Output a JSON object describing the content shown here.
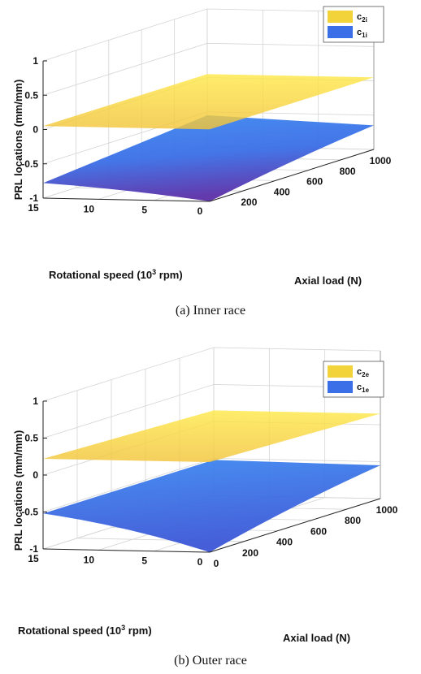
{
  "chart_data": [
    {
      "type": "surface",
      "caption": "(a) Inner race",
      "zlabel": "PRL locations (mm/mm)",
      "ylabel_main": "Rotational speed (10",
      "ylabel_sup": "3",
      "ylabel_end": " rpm)",
      "xlabel": "Axial load (N)",
      "x_ticks": [
        "200",
        "400",
        "600",
        "800",
        "1000"
      ],
      "y_ticks": [
        "0",
        "5",
        "10",
        "15"
      ],
      "z_ticks": [
        "-1",
        "-0.5",
        "0",
        "0.5",
        "1"
      ],
      "xlim": [
        0,
        1000
      ],
      "ylim": [
        0,
        15
      ],
      "zlim": [
        -1,
        1
      ],
      "legend": [
        {
          "name": "c",
          "sub": "2i",
          "color": "#F2D33A"
        },
        {
          "name": "c",
          "sub": "1i",
          "color": "#3B6FE8"
        }
      ],
      "series": [
        {
          "name": "c2i",
          "color_top": "#FFE63C",
          "color_bottom": "#F0C43A",
          "corners": {
            "load0_speed0": 0.05,
            "load0_speed15": 0.05,
            "load1000_speed0": 0.05,
            "load1000_speed15": 0.05
          }
        },
        {
          "name": "c1i",
          "color_top": "#3F86F0",
          "color_bottom": "#5433A8",
          "corners": {
            "load0_speed0": -1.0,
            "load0_speed15": -0.78,
            "load1000_speed0": -0.65,
            "load1000_speed15": -0.55
          }
        }
      ]
    },
    {
      "type": "surface",
      "caption": "(b) Outer race",
      "zlabel": "PRL locations (mm/mm)",
      "ylabel_main": "Rotational speed (10",
      "ylabel_sup": "3",
      "ylabel_end": " rpm)",
      "xlabel": "Axial load (N)",
      "x_ticks": [
        "0",
        "200",
        "400",
        "600",
        "800",
        "1000"
      ],
      "y_ticks": [
        "0",
        "5",
        "10",
        "15"
      ],
      "z_ticks": [
        "-1",
        "-0.5",
        "0",
        "0.5",
        "1"
      ],
      "xlim": [
        0,
        1000
      ],
      "ylim": [
        0,
        15
      ],
      "zlim": [
        -1,
        1
      ],
      "legend": [
        {
          "name": "c",
          "sub": "2e",
          "color": "#F2D33A"
        },
        {
          "name": "c",
          "sub": "1e",
          "color": "#3B6FE8"
        }
      ],
      "series": [
        {
          "name": "c2e",
          "color_top": "#FFEA3A",
          "color_bottom": "#F0C43A",
          "corners": {
            "load0_speed0": 0.22,
            "load0_speed15": 0.22,
            "load1000_speed0": 0.15,
            "load1000_speed15": 0.15
          }
        },
        {
          "name": "c1e",
          "color_top": "#3F86F0",
          "color_bottom": "#3F5AD8",
          "corners": {
            "load0_speed0": -1.0,
            "load0_speed15": -0.52,
            "load1000_speed0": -0.55,
            "load1000_speed15": -0.52
          }
        }
      ]
    }
  ]
}
